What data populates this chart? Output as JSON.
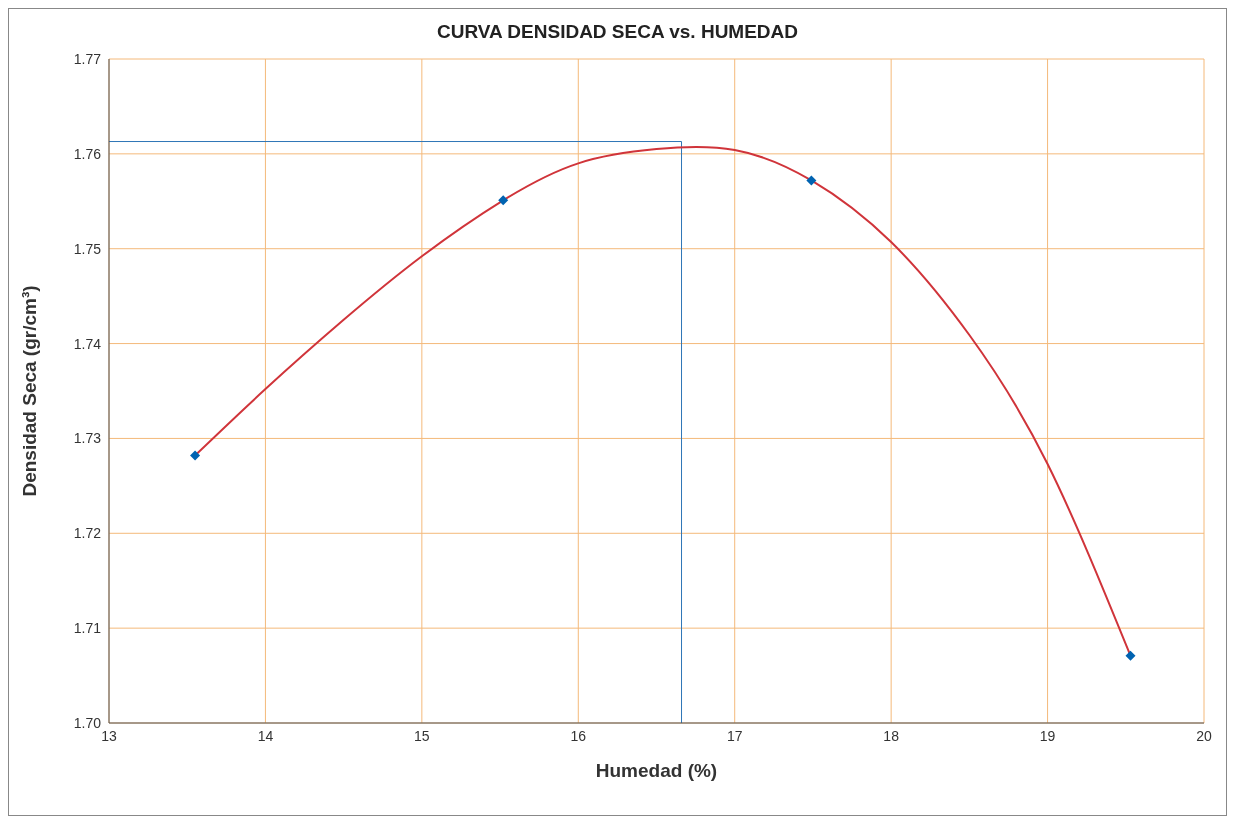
{
  "chart_data": {
    "type": "scatter",
    "title": "CURVA DENSIDAD SECA vs. HUMEDAD",
    "xlabel": "Humedad (%)",
    "ylabel": "Densidad Seca (gr/cm³)",
    "xlim": [
      13,
      20
    ],
    "xticks": [
      13,
      14,
      15,
      16,
      17,
      18,
      19,
      20
    ],
    "ylim": [
      1.7,
      1.77
    ],
    "yticks": [
      {
        "value": 1.7,
        "label": "1.70"
      },
      1.71,
      1.72,
      1.73,
      1.74,
      1.75,
      1.76,
      1.77
    ],
    "grid": true,
    "legend": false,
    "marker": "diamond",
    "series": [
      {
        "type": "line",
        "color": "#d0343a",
        "marker": "none",
        "x": [
          13.55,
          14,
          14.5,
          15,
          15.52,
          16,
          16.5,
          17,
          17.49,
          18,
          18.5,
          19,
          19.53
        ],
        "values": [
          1.7282,
          1.7352,
          1.7425,
          1.7492,
          1.7551,
          1.759,
          1.7605,
          1.7604,
          1.7572,
          1.7507,
          1.7409,
          1.7273,
          1.7071
        ]
      },
      {
        "color": "#0063b1",
        "x": [
          13.55,
          15.52,
          17.49,
          19.53
        ],
        "values": [
          1.7282,
          1.7551,
          1.7572,
          1.7071
        ]
      }
    ],
    "ref_lines": [
      {
        "axis": "y",
        "value": 1.7613,
        "color": "#2e75b6"
      },
      {
        "axis": "x",
        "value": 16.66,
        "color": "#2e75b6"
      }
    ]
  }
}
